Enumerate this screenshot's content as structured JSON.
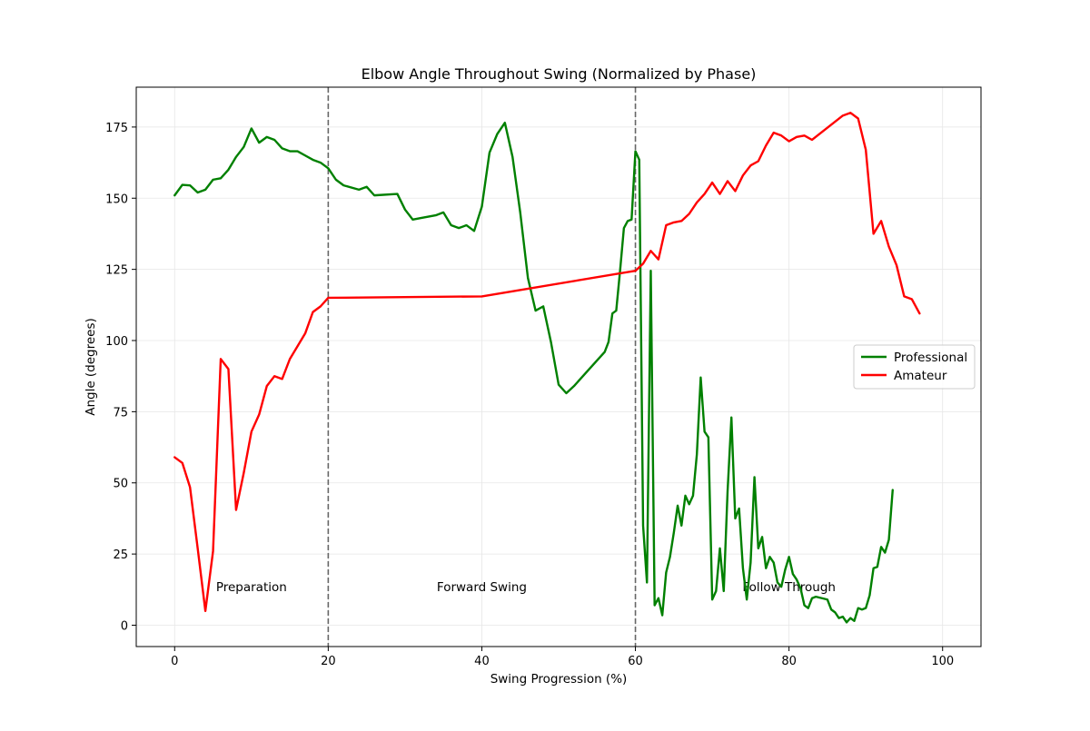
{
  "chart_data": {
    "type": "line",
    "title": "Elbow Angle Throughout Swing (Normalized by Phase)",
    "xlabel": "Swing Progression (%)",
    "ylabel": "Angle (degrees)",
    "xlim": [
      -5,
      105
    ],
    "ylim": [
      -7.5,
      189
    ],
    "xticks": [
      0,
      20,
      40,
      60,
      80,
      100
    ],
    "yticks": [
      0,
      25,
      50,
      75,
      100,
      125,
      150,
      175
    ],
    "grid": true,
    "legend_position": "center-right",
    "phase_boundaries": [
      20,
      60
    ],
    "phase_labels": [
      {
        "text": "Preparation",
        "x": 10,
        "y": 13.5
      },
      {
        "text": "Forward Swing",
        "x": 40,
        "y": 13.5
      },
      {
        "text": "Follow Through",
        "x": 80,
        "y": 13.5
      }
    ],
    "series": [
      {
        "name": "Professional",
        "color": "#008000",
        "points": [
          [
            0,
            151
          ],
          [
            1,
            154.7
          ],
          [
            2,
            154.5
          ],
          [
            3,
            152
          ],
          [
            4,
            153
          ],
          [
            5,
            156.5
          ],
          [
            6,
            157
          ],
          [
            7,
            160
          ],
          [
            8,
            164.5
          ],
          [
            9,
            168
          ],
          [
            10,
            174.5
          ],
          [
            11,
            169.5
          ],
          [
            12,
            171.5
          ],
          [
            13,
            170.5
          ],
          [
            14,
            167.5
          ],
          [
            15,
            166.5
          ],
          [
            16,
            166.5
          ],
          [
            17,
            165
          ],
          [
            18,
            163.5
          ],
          [
            19,
            162.5
          ],
          [
            20,
            160.5
          ],
          [
            21,
            156.5
          ],
          [
            22,
            154.5
          ],
          [
            24,
            153
          ],
          [
            25,
            154
          ],
          [
            26,
            151
          ],
          [
            29,
            151.5
          ],
          [
            30,
            146
          ],
          [
            31,
            142.5
          ],
          [
            32,
            143
          ],
          [
            34,
            144
          ],
          [
            35,
            145
          ],
          [
            36,
            140.5
          ],
          [
            37,
            139.5
          ],
          [
            38,
            140.5
          ],
          [
            39,
            138.5
          ],
          [
            40,
            147
          ],
          [
            41,
            166
          ],
          [
            42,
            172.5
          ],
          [
            43,
            176.5
          ],
          [
            44,
            164.5
          ],
          [
            45,
            145
          ],
          [
            46,
            122
          ],
          [
            47,
            110.5
          ],
          [
            48,
            112
          ],
          [
            49,
            99.5
          ],
          [
            50,
            84.5
          ],
          [
            51,
            81.5
          ],
          [
            52,
            84
          ],
          [
            54,
            90
          ],
          [
            55,
            93
          ],
          [
            56,
            96
          ],
          [
            56.5,
            99.5
          ],
          [
            57,
            109.5
          ],
          [
            57.5,
            110.5
          ],
          [
            58,
            124.5
          ],
          [
            58.5,
            139.5
          ],
          [
            59,
            142
          ],
          [
            59.5,
            142.5
          ],
          [
            60,
            166.5
          ],
          [
            60.5,
            163.5
          ],
          [
            61,
            35
          ],
          [
            61.5,
            15
          ],
          [
            62,
            124.5
          ],
          [
            62.5,
            7
          ],
          [
            63,
            9.5
          ],
          [
            63.5,
            3.5
          ],
          [
            64,
            18.5
          ],
          [
            64.5,
            24
          ],
          [
            65,
            32.5
          ],
          [
            65.5,
            42
          ],
          [
            66,
            35
          ],
          [
            66.5,
            45.5
          ],
          [
            67,
            42.5
          ],
          [
            67.5,
            45.5
          ],
          [
            68,
            60
          ],
          [
            68.5,
            87
          ],
          [
            69,
            68
          ],
          [
            69.5,
            66
          ],
          [
            70,
            9
          ],
          [
            70.5,
            12
          ],
          [
            71,
            27
          ],
          [
            71.5,
            12
          ],
          [
            72,
            47
          ],
          [
            72.5,
            73
          ],
          [
            73,
            37.5
          ],
          [
            73.5,
            41
          ],
          [
            74,
            20
          ],
          [
            74.5,
            9
          ],
          [
            75,
            22
          ],
          [
            75.5,
            52
          ],
          [
            76,
            27
          ],
          [
            76.5,
            31
          ],
          [
            77,
            20
          ],
          [
            77.5,
            24
          ],
          [
            78,
            22
          ],
          [
            78.5,
            15
          ],
          [
            79,
            13.5
          ],
          [
            79.5,
            19.5
          ],
          [
            80,
            24
          ],
          [
            80.5,
            18
          ],
          [
            81,
            16
          ],
          [
            81.5,
            13
          ],
          [
            82,
            7
          ],
          [
            82.5,
            6
          ],
          [
            83,
            9.5
          ],
          [
            83.5,
            10
          ],
          [
            85,
            9
          ],
          [
            85.5,
            5.5
          ],
          [
            86,
            4.5
          ],
          [
            86.5,
            2.5
          ],
          [
            87,
            3
          ],
          [
            87.5,
            1
          ],
          [
            88,
            2.5
          ],
          [
            88.5,
            1.5
          ],
          [
            89,
            6
          ],
          [
            89.5,
            5.5
          ],
          [
            90,
            6
          ],
          [
            90.5,
            10.5
          ],
          [
            91,
            20
          ],
          [
            91.5,
            20.5
          ],
          [
            92,
            27.5
          ],
          [
            92.5,
            25.5
          ],
          [
            93,
            30
          ],
          [
            93.5,
            47.5
          ]
        ]
      },
      {
        "name": "Amateur",
        "color": "#ff0000",
        "points": [
          [
            0,
            59
          ],
          [
            1,
            57
          ],
          [
            2,
            48.5
          ],
          [
            3,
            27
          ],
          [
            4,
            5
          ],
          [
            5,
            26
          ],
          [
            6,
            93.5
          ],
          [
            7,
            90
          ],
          [
            8,
            40.5
          ],
          [
            9,
            53.5
          ],
          [
            10,
            68
          ],
          [
            11,
            74
          ],
          [
            12,
            84
          ],
          [
            13,
            87.5
          ],
          [
            14,
            86.5
          ],
          [
            15,
            93.5
          ],
          [
            17,
            102.5
          ],
          [
            18,
            110
          ],
          [
            19,
            112
          ],
          [
            20,
            115
          ],
          [
            40,
            115.5
          ],
          [
            60,
            124.5
          ],
          [
            61,
            127
          ],
          [
            62,
            131.5
          ],
          [
            63,
            128.5
          ],
          [
            64,
            140.5
          ],
          [
            65,
            141.5
          ],
          [
            66,
            142
          ],
          [
            67,
            144.5
          ],
          [
            68,
            148.5
          ],
          [
            69,
            151.5
          ],
          [
            70,
            155.5
          ],
          [
            71,
            151.5
          ],
          [
            72,
            156
          ],
          [
            73,
            152.5
          ],
          [
            74,
            158
          ],
          [
            75,
            161.5
          ],
          [
            76,
            163
          ],
          [
            77,
            168.5
          ],
          [
            78,
            173
          ],
          [
            79,
            172
          ],
          [
            80,
            170
          ],
          [
            81,
            171.5
          ],
          [
            82,
            172
          ],
          [
            83,
            170.5
          ],
          [
            87,
            179
          ],
          [
            88,
            180
          ],
          [
            89,
            178
          ],
          [
            90,
            167
          ],
          [
            91,
            137.5
          ],
          [
            92,
            142
          ],
          [
            93,
            133
          ],
          [
            94,
            126.5
          ],
          [
            95,
            115.5
          ],
          [
            96,
            114.5
          ],
          [
            97,
            109.5
          ]
        ]
      }
    ]
  }
}
